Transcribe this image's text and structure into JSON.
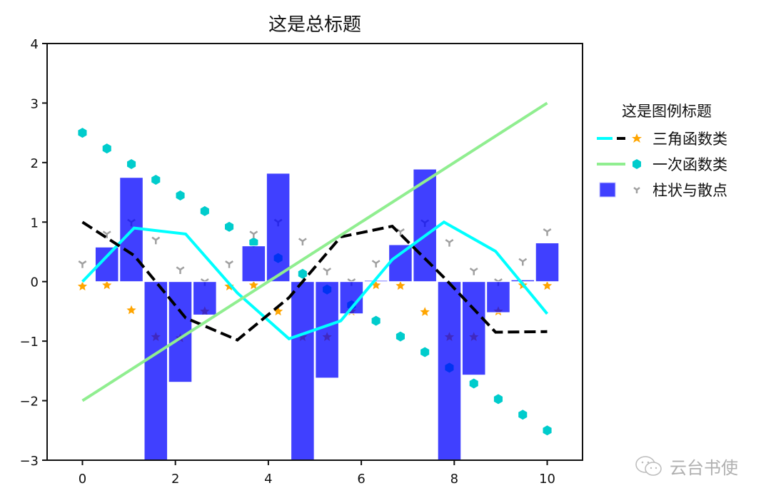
{
  "chart_data": {
    "type": "bar+line+scatter",
    "title": "这是总标题",
    "xlabel": "",
    "ylabel": "",
    "xlim": [
      -0.76,
      10.76
    ],
    "ylim": [
      -3,
      4
    ],
    "xticks": [
      0,
      2,
      4,
      6,
      8,
      10
    ],
    "yticks": [
      -3,
      -2,
      -1,
      0,
      1,
      2,
      3,
      4
    ],
    "xtick_labels": [
      "0",
      "2",
      "4",
      "6",
      "8",
      "10"
    ],
    "ytick_labels": [
      "−3",
      "−2",
      "−1",
      "0",
      "1",
      "2",
      "3",
      "4"
    ],
    "grid": false,
    "legend": {
      "title": "这是图例标题",
      "position": "outside right",
      "entries": [
        "三角函数类",
        "一次函数类",
        "柱状与散点"
      ]
    },
    "x10": [
      0,
      1.111,
      2.222,
      3.333,
      4.444,
      5.556,
      6.667,
      7.778,
      8.889,
      10
    ],
    "x20": [
      0,
      0.526,
      1.053,
      1.579,
      2.105,
      2.632,
      3.158,
      3.684,
      4.211,
      4.737,
      5.263,
      5.789,
      6.316,
      6.842,
      7.368,
      7.895,
      8.421,
      8.947,
      9.474,
      10
    ],
    "series": [
      {
        "name": "sin",
        "kind": "line",
        "group": "三角函数类",
        "color": "#00ffff",
        "style": "solid",
        "x": "x10",
        "values": [
          0,
          0.9,
          0.8,
          -0.19,
          -0.96,
          -0.66,
          0.37,
          1.0,
          0.51,
          -0.54
        ]
      },
      {
        "name": "cos",
        "kind": "line",
        "group": "三角函数类",
        "color": "#000000",
        "style": "dashed",
        "x": "x10",
        "values": [
          1.0,
          0.44,
          -0.61,
          -0.98,
          -0.27,
          0.75,
          0.93,
          0.07,
          -0.85,
          -0.84
        ]
      },
      {
        "name": "trig-scatter",
        "kind": "scatter",
        "marker": "star",
        "group": "三角函数类",
        "color": "#ffa500",
        "x": "x20",
        "values": [
          -0.08,
          -0.06,
          -0.48,
          -0.93,
          -0.95,
          -0.5,
          -0.08,
          -0.06,
          -0.5,
          -0.93,
          -0.93,
          -0.5,
          -0.06,
          -0.07,
          -0.51,
          -0.93,
          -0.93,
          -0.5,
          -0.06,
          -0.07
        ]
      },
      {
        "name": "linear",
        "kind": "line",
        "group": "一次函数类",
        "color": "#90ee90",
        "style": "solid",
        "x": [
          0,
          10
        ],
        "values": [
          -2,
          3
        ]
      },
      {
        "name": "linear-scatter",
        "kind": "scatter",
        "marker": "hexagon",
        "group": "一次函数类",
        "color": "#00cccc",
        "x": "x20",
        "values": [
          2.5,
          2.237,
          1.974,
          1.711,
          1.447,
          1.184,
          0.921,
          0.658,
          0.395,
          0.132,
          -0.132,
          -0.395,
          -0.658,
          -0.921,
          -1.184,
          -1.447,
          -1.711,
          -1.974,
          -2.237,
          -2.5
        ]
      },
      {
        "name": "tri-scatter",
        "kind": "scatter",
        "marker": "tri_down",
        "group": "柱状与散点",
        "color": "#a0a0a0",
        "x": "x20",
        "values": [
          0.3,
          0.8,
          1.0,
          0.7,
          0.2,
          0.0,
          0.3,
          0.8,
          1.0,
          0.68,
          0.18,
          0.0,
          0.31,
          0.84,
          0.99,
          0.66,
          0.18,
          0.0,
          0.34,
          0.84
        ]
      },
      {
        "name": "tan-bars",
        "kind": "bar",
        "group": "柱状与散点",
        "color": "#0000ff",
        "alpha": 0.75,
        "width": 0.5,
        "x": "x20",
        "values": [
          0,
          0.58,
          1.75,
          -3.5,
          -1.69,
          -0.56,
          0.01,
          0.6,
          1.82,
          -3.5,
          -1.62,
          -0.54,
          0.02,
          0.62,
          1.89,
          -3.5,
          -1.57,
          -0.52,
          0.03,
          0.65
        ]
      }
    ]
  },
  "legend": {
    "title": "这是图例标题",
    "items": [
      {
        "label": "三角函数类"
      },
      {
        "label": "一次函数类"
      },
      {
        "label": "柱状与散点"
      }
    ]
  },
  "watermark": {
    "icon": "wechat-icon",
    "text": "云台书使"
  },
  "colors": {
    "axis": "#111111",
    "bar": "#4040ff",
    "bar_edge": "#ffffff"
  }
}
